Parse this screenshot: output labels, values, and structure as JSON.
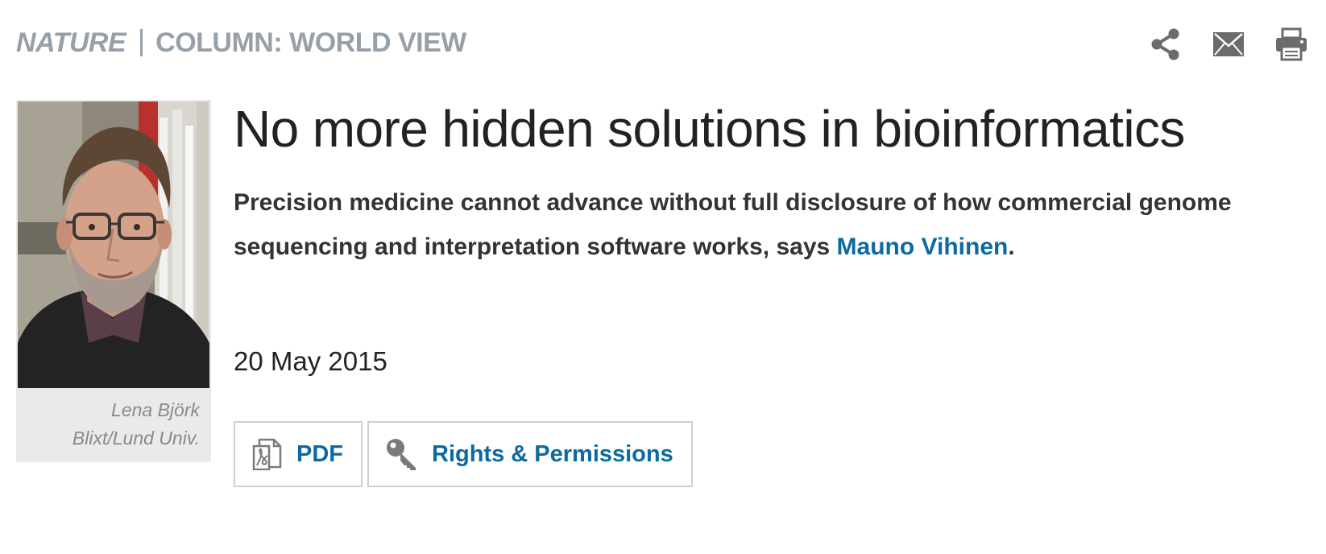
{
  "header": {
    "journal": "NATURE",
    "section": "COLUMN: WORLD VIEW",
    "tools": [
      {
        "name": "share-icon",
        "label": "Share"
      },
      {
        "name": "email-icon",
        "label": "Email"
      },
      {
        "name": "print-icon",
        "label": "Print"
      }
    ]
  },
  "photo": {
    "caption_line1": "Lena Björk",
    "caption_line2": "Blixt/Lund Univ."
  },
  "article": {
    "title": "No more hidden solutions in bioinformatics",
    "standfirst_text": "Precision medicine cannot advance without full disclosure of how commercial genome sequencing and interpretation software works, says ",
    "author": "Mauno Vihinen",
    "standfirst_end": ".",
    "date": "20 May 2015"
  },
  "actions": {
    "pdf_label": "PDF",
    "rights_label": "Rights & Permissions"
  },
  "colors": {
    "kicker": "#96a0a8",
    "link": "#0b6aa0",
    "text": "#222222",
    "button_border": "#cfcfcf",
    "icon": "#6b6b6b"
  }
}
